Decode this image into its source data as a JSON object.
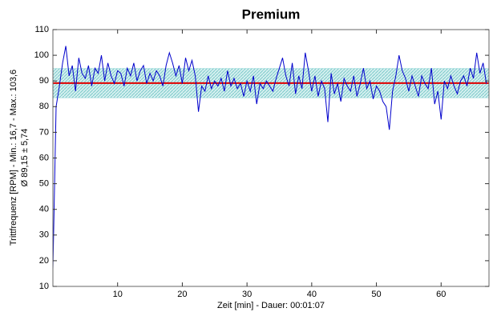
{
  "chart_data": {
    "type": "line",
    "title": "Premium",
    "x_label": "Zeit [min] - Dauer: 00:01:07",
    "y_label": [
      "Trittfrequenz [RPM] - Min.: 16,7 - Max.: 103,6",
      "Ø 89,15 ± 5,74"
    ],
    "x": [
      0,
      0.5,
      1,
      1.5,
      2,
      2.5,
      3,
      3.5,
      4,
      4.5,
      5,
      5.5,
      6,
      6.5,
      7,
      7.5,
      8,
      8.5,
      9,
      9.5,
      10,
      10.5,
      11,
      11.5,
      12,
      12.5,
      13,
      13.5,
      14,
      14.5,
      15,
      15.5,
      16,
      16.5,
      17,
      17.5,
      18,
      18.5,
      19,
      19.5,
      20,
      20.5,
      21,
      21.5,
      22,
      22.5,
      23,
      23.5,
      24,
      24.5,
      25,
      25.5,
      26,
      26.5,
      27,
      27.5,
      28,
      28.5,
      29,
      29.5,
      30,
      30.5,
      31,
      31.5,
      32,
      32.5,
      33,
      33.5,
      34,
      34.5,
      35,
      35.5,
      36,
      36.5,
      37,
      37.5,
      38,
      38.5,
      39,
      39.5,
      40,
      40.5,
      41,
      41.5,
      42,
      42.5,
      43,
      43.5,
      44,
      44.5,
      45,
      45.5,
      46,
      46.5,
      47,
      47.5,
      48,
      48.5,
      49,
      49.5,
      50,
      50.5,
      51,
      51.5,
      52,
      52.5,
      53,
      53.5,
      54,
      54.5,
      55,
      55.5,
      56,
      56.5,
      57,
      57.5,
      58,
      58.5,
      59,
      59.5,
      60,
      60.5,
      61,
      61.5,
      62,
      62.5,
      63,
      63.5,
      64,
      64.5,
      65,
      65.5,
      66,
      66.5,
      67
    ],
    "values": [
      16.7,
      80,
      88,
      97,
      103.6,
      92,
      96,
      86,
      99,
      93,
      91,
      96,
      88,
      95,
      93,
      100,
      90,
      97,
      92,
      89,
      94,
      93,
      88,
      95,
      92,
      97,
      90,
      94,
      96,
      89,
      93,
      90,
      94,
      92,
      88,
      96,
      101,
      97,
      92,
      96,
      89,
      99,
      94,
      98,
      92,
      78,
      88,
      86,
      92,
      87,
      90,
      88,
      91,
      86,
      94,
      88,
      91,
      87,
      89,
      84,
      90,
      86,
      92,
      81,
      89,
      87,
      90,
      88,
      86,
      91,
      95,
      99,
      92,
      88,
      97,
      85,
      92,
      87,
      101,
      94,
      86,
      92,
      84,
      90,
      87,
      74,
      93,
      85,
      89,
      82,
      91,
      88,
      86,
      92,
      84,
      89,
      95,
      87,
      90,
      83,
      88,
      86,
      82,
      80,
      71,
      86,
      92,
      100,
      94,
      91,
      86,
      92,
      88,
      84,
      92,
      89,
      87,
      95,
      81,
      86,
      75,
      90,
      87,
      92,
      88,
      85,
      90,
      92,
      88,
      95,
      91,
      101,
      93,
      97,
      89
    ],
    "color": "#0000cc",
    "mean": 89.15,
    "mean_color": "#e00000",
    "std": 5.74,
    "band_color": "#9fdcdc",
    "xlim": [
      0,
      67.4
    ],
    "ylim": [
      10,
      110
    ],
    "xticks": [
      10,
      20,
      30,
      40,
      50,
      60
    ],
    "yticks": [
      10,
      20,
      30,
      40,
      50,
      60,
      70,
      80,
      90,
      100,
      110
    ]
  }
}
